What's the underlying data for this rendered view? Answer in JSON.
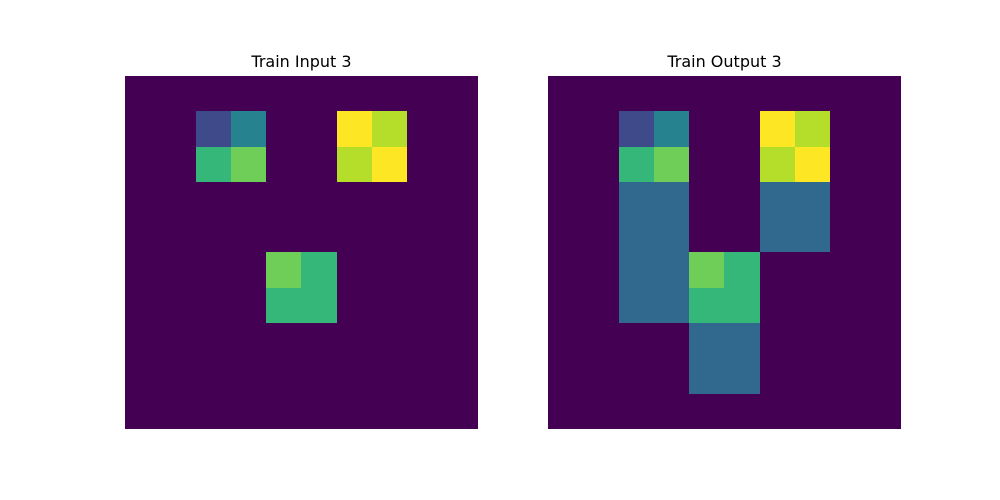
{
  "panels": [
    {
      "title": "Train Input 3",
      "grid": [
        [
          0,
          0,
          0,
          0,
          0,
          0,
          0,
          0,
          0,
          0
        ],
        [
          0,
          0,
          2,
          3,
          0,
          0,
          8,
          7,
          0,
          0
        ],
        [
          0,
          0,
          4,
          5,
          0,
          0,
          7,
          8,
          0,
          0
        ],
        [
          0,
          0,
          0,
          0,
          0,
          0,
          0,
          0,
          0,
          0
        ],
        [
          0,
          0,
          0,
          0,
          0,
          0,
          0,
          0,
          0,
          0
        ],
        [
          0,
          0,
          0,
          0,
          5,
          4,
          0,
          0,
          0,
          0
        ],
        [
          0,
          0,
          0,
          0,
          4,
          4,
          0,
          0,
          0,
          0
        ],
        [
          0,
          0,
          0,
          0,
          0,
          0,
          0,
          0,
          0,
          0
        ],
        [
          0,
          0,
          0,
          0,
          0,
          0,
          0,
          0,
          0,
          0
        ],
        [
          0,
          0,
          0,
          0,
          0,
          0,
          0,
          0,
          0,
          0
        ]
      ]
    },
    {
      "title": "Train Output 3",
      "grid": [
        [
          0,
          0,
          0,
          0,
          0,
          0,
          0,
          0,
          0,
          0
        ],
        [
          0,
          0,
          2,
          3,
          0,
          0,
          8,
          7,
          0,
          0
        ],
        [
          0,
          0,
          4,
          5,
          0,
          0,
          7,
          8,
          0,
          0
        ],
        [
          0,
          0,
          1,
          1,
          0,
          0,
          1,
          1,
          0,
          0
        ],
        [
          0,
          0,
          1,
          1,
          0,
          0,
          1,
          1,
          0,
          0
        ],
        [
          0,
          0,
          1,
          1,
          5,
          4,
          0,
          0,
          0,
          0
        ],
        [
          0,
          0,
          1,
          1,
          4,
          4,
          0,
          0,
          0,
          0
        ],
        [
          0,
          0,
          0,
          0,
          1,
          1,
          0,
          0,
          0,
          0
        ],
        [
          0,
          0,
          0,
          0,
          1,
          1,
          0,
          0,
          0,
          0
        ],
        [
          0,
          0,
          0,
          0,
          0,
          0,
          0,
          0,
          0,
          0
        ]
      ]
    }
  ],
  "palette": {
    "0": "#440154",
    "1": "#31688e",
    "2": "#3e4a89",
    "3": "#26828e",
    "4": "#35b779",
    "5": "#6ece58",
    "7": "#b5de2b",
    "8": "#fde725"
  }
}
